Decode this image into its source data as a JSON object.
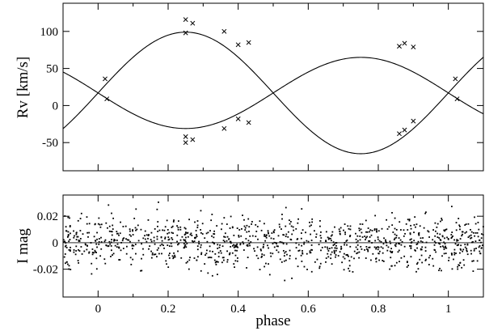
{
  "chart_data": [
    {
      "type": "scatter",
      "title": "",
      "xlabel": "",
      "ylabel": "Rv [km/s]",
      "xlim": [
        -0.1,
        1.1
      ],
      "ylim": [
        -88,
        138
      ],
      "xticks": [
        0,
        0.2,
        0.4,
        0.6,
        0.8,
        1
      ],
      "yticks": [
        -50,
        0,
        50,
        100
      ],
      "ytick_labels": [
        "-50",
        "0",
        "50",
        "100"
      ],
      "model": {
        "systemic_velocity": 17,
        "semi_amplitude_1": 82,
        "semi_amplitude_2": 48
      },
      "series": [
        {
          "marker": "x",
          "x": [
            0.02,
            0.025,
            0.25,
            0.25,
            0.27,
            0.36,
            0.4,
            0.43,
            0.86,
            0.875,
            0.9,
            1.02,
            1.025
          ],
          "y": [
            36,
            9,
            116,
            98,
            111,
            100,
            82,
            85,
            80,
            84,
            79,
            36,
            9
          ]
        },
        {
          "marker": "x",
          "x": [
            0.25,
            0.25,
            0.27,
            0.36,
            0.4,
            0.43,
            0.86,
            0.875,
            0.9
          ],
          "y": [
            -42,
            -50,
            -46,
            -31,
            -18,
            -23,
            -38,
            -33,
            -21
          ]
        }
      ]
    },
    {
      "type": "scatter",
      "title": "",
      "xlabel": "phase",
      "ylabel": "I mag",
      "xlim": [
        -0.1,
        1.1
      ],
      "ylim": [
        -0.041,
        0.036
      ],
      "xticks": [
        0,
        0.2,
        0.4,
        0.6,
        0.8,
        1
      ],
      "xtick_labels": [
        "0",
        "0.2",
        "0.4",
        "0.6",
        "0.8",
        "1"
      ],
      "yticks": [
        -0.02,
        0,
        0.02
      ],
      "ytick_labels": [
        "-0.02",
        "0",
        "0.02"
      ],
      "residuals": {
        "count": 1100,
        "std": 0.0095,
        "max_abs": 0.033,
        "marker": "dot"
      },
      "reference_line": 0
    }
  ]
}
